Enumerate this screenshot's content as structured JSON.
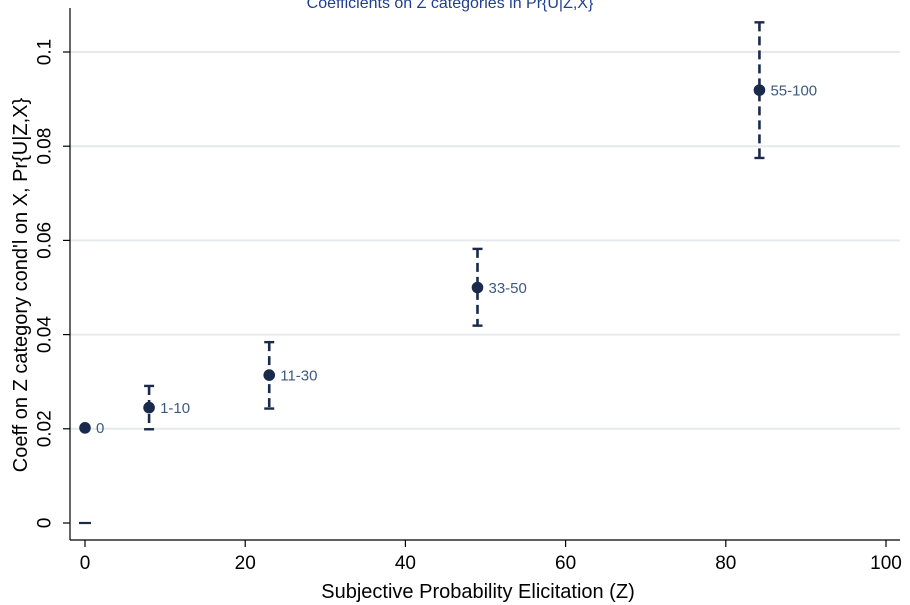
{
  "chart_data": {
    "type": "scatter",
    "title": "Coefficients on Z categories in Pr{U|Z,X}",
    "xlabel": "Subjective Probability Elicitation (Z)",
    "ylabel": "Coeff on Z category cond'l on X, Pr{U|Z,X}",
    "xlim": [
      0,
      100
    ],
    "ylim": [
      0,
      0.11
    ],
    "x_ticks": [
      0,
      20,
      40,
      60,
      80,
      100
    ],
    "y_ticks": [
      0,
      0.02,
      0.04,
      0.06,
      0.08,
      0.1
    ],
    "x_tick_labels": [
      "0",
      "20",
      "40",
      "60",
      "80",
      "100"
    ],
    "y_tick_labels": [
      "0",
      "0.02",
      "0.04",
      "0.06",
      "0.08",
      "0.1"
    ],
    "grid": "horizontal",
    "points": [
      {
        "label": "0",
        "x": 0,
        "y": 0.0202,
        "lower": null,
        "upper": null
      },
      {
        "label": "1-10",
        "x": 8,
        "y": 0.0245,
        "lower": 0.0199,
        "upper": 0.0291
      },
      {
        "label": "11-30",
        "x": 23,
        "y": 0.0314,
        "lower": 0.0243,
        "upper": 0.0384
      },
      {
        "label": "33-50",
        "x": 49,
        "y": 0.05,
        "lower": 0.0419,
        "upper": 0.0582
      },
      {
        "label": "55-100",
        "x": 84.2,
        "y": 0.0919,
        "lower": 0.0775,
        "upper": 0.1063
      }
    ],
    "reference_marks": [
      {
        "x": 0,
        "y": 0
      }
    ],
    "colors": {
      "marker": "#1a2a4a",
      "label": "#3d5a80",
      "title": "#1f3f8f",
      "grid": "#e6eaee"
    }
  }
}
